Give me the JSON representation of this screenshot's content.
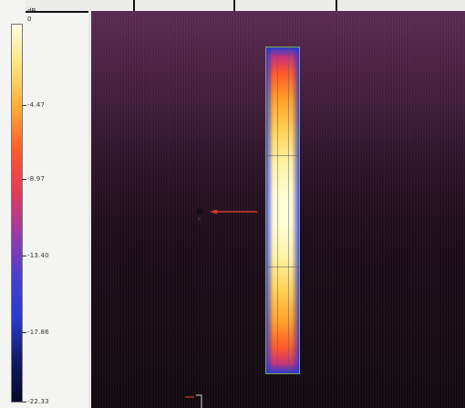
{
  "scale": {
    "unit": "dB",
    "top_label": "0",
    "ticks": [
      "-4.47",
      "-8.97",
      "-13.40",
      "-17.86",
      "-22.33"
    ],
    "colors": [
      "#fffce0",
      "#ffe27a",
      "#ffaa33",
      "#ff5a2a",
      "#e23a5a",
      "#9b3aa8",
      "#4a3fcf",
      "#2a3bd0",
      "#141a66",
      "#07082a"
    ]
  },
  "plot": {
    "background_color": "#2e1428",
    "array_outline_color": "#7fa84a",
    "pointer_color": "#d23a2a"
  }
}
